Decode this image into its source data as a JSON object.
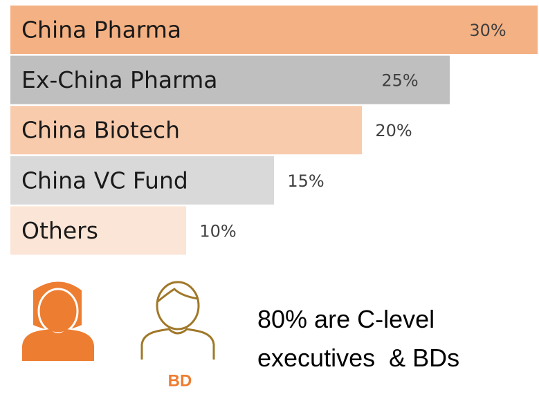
{
  "chart_data": {
    "type": "bar",
    "orientation": "horizontal",
    "categories": [
      "China Pharma",
      "Ex-China Pharma",
      "China Biotech",
      "China VC Fund",
      "Others"
    ],
    "values": [
      30,
      25,
      20,
      15,
      10
    ],
    "value_labels": [
      "30%",
      "25%",
      "20%",
      "15%",
      "10%"
    ],
    "colors": [
      "#f4b183",
      "#bfbfbf",
      "#f8cbad",
      "#d9d9d9",
      "#fbe5d6"
    ],
    "xlim": [
      0,
      30
    ],
    "icon_label": "BD",
    "annotations": [
      "80% are C-level",
      "executives  & BDs"
    ]
  }
}
